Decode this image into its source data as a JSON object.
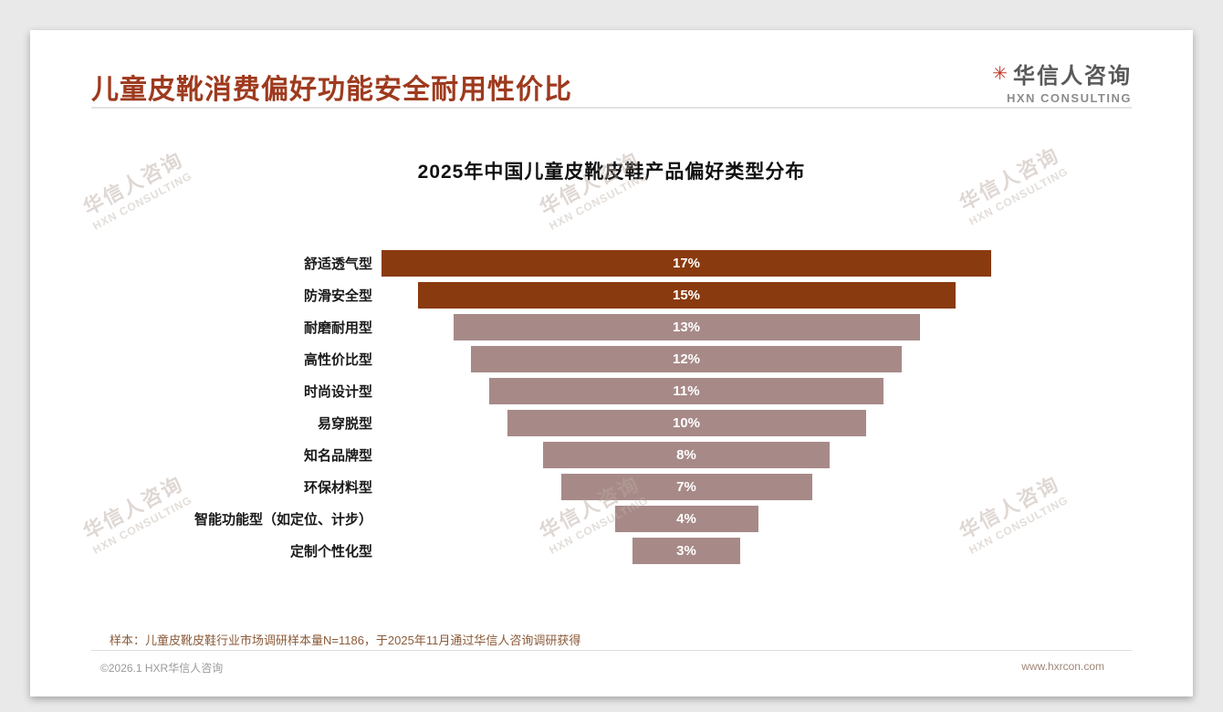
{
  "header": {
    "title": "儿童皮靴消费偏好功能安全耐用性价比",
    "logo_cn": "华信人咨询",
    "logo_en": "HXN CONSULTING"
  },
  "chart_data": {
    "type": "bar",
    "orientation": "horizontal-funnel-centered",
    "title": "2025年中国儿童皮靴皮鞋产品偏好类型分布",
    "categories": [
      "舒适透气型",
      "防滑安全型",
      "耐磨耐用型",
      "高性价比型",
      "时尚设计型",
      "易穿脱型",
      "知名品牌型",
      "环保材料型",
      "智能功能型（如定位、计步）",
      "定制个性化型"
    ],
    "values": [
      17,
      15,
      13,
      12,
      11,
      10,
      8,
      7,
      4,
      3
    ],
    "unit": "%",
    "value_labels": [
      "17%",
      "15%",
      "13%",
      "12%",
      "11%",
      "10%",
      "8%",
      "7%",
      "4%",
      "3%"
    ],
    "colors": {
      "highlight": "#8a3a0f",
      "normal": "#a78a88"
    },
    "highlight_count": 2,
    "xlim": [
      0,
      17
    ],
    "legend": "none",
    "grid": "off"
  },
  "watermark": {
    "line1": "华信人咨询",
    "line2": "HXN CONSULTING"
  },
  "footnote": "样本：儿童皮靴皮鞋行业市场调研样本量N=1186，于2025年11月通过华信人咨询调研获得",
  "footer": {
    "left": "©2026.1 HXR华信人咨询",
    "right": "www.hxrcon.com"
  }
}
